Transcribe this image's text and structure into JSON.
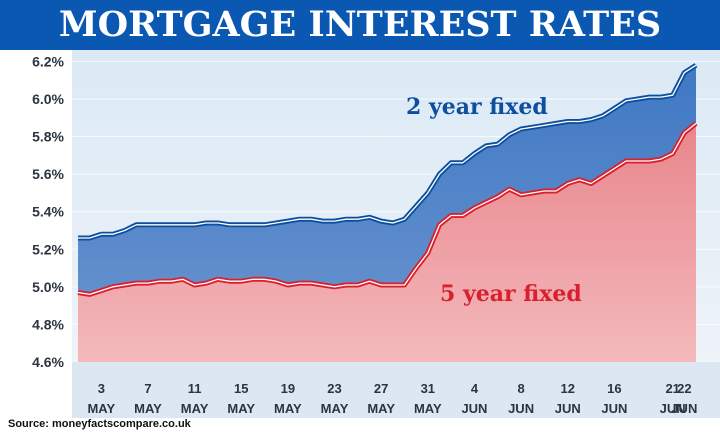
{
  "chart_data": {
    "type": "area",
    "title": "MORTGAGE INTEREST RATES",
    "source": "Source: moneyfactscompare.co.uk",
    "x": [
      1,
      2,
      3,
      4,
      5,
      6,
      7,
      8,
      9,
      10,
      11,
      12,
      13,
      14,
      15,
      16,
      17,
      18,
      19,
      20,
      21,
      22,
      23,
      24,
      25,
      26,
      27,
      28,
      29,
      30,
      31,
      32,
      33,
      34,
      35,
      36,
      37,
      38,
      39,
      40,
      41,
      42,
      43,
      44,
      45,
      46,
      47,
      48,
      49,
      50,
      51,
      52,
      53,
      54
    ],
    "x_ticks": [
      {
        "x": 3,
        "day": "3",
        "month": "MAY"
      },
      {
        "x": 7,
        "day": "7",
        "month": "MAY"
      },
      {
        "x": 11,
        "day": "11",
        "month": "MAY"
      },
      {
        "x": 15,
        "day": "15",
        "month": "MAY"
      },
      {
        "x": 19,
        "day": "19",
        "month": "MAY"
      },
      {
        "x": 23,
        "day": "23",
        "month": "MAY"
      },
      {
        "x": 27,
        "day": "27",
        "month": "MAY"
      },
      {
        "x": 31,
        "day": "31",
        "month": "MAY"
      },
      {
        "x": 35,
        "day": "4",
        "month": "JUN"
      },
      {
        "x": 39,
        "day": "8",
        "month": "JUN"
      },
      {
        "x": 43,
        "day": "12",
        "month": "JUN"
      },
      {
        "x": 47,
        "day": "16",
        "month": "JUN"
      },
      {
        "x": 52,
        "day": "21",
        "month": "JUN"
      },
      {
        "x": 53,
        "day": "22",
        "month": "JUN"
      }
    ],
    "ylim": [
      4.6,
      6.25
    ],
    "y_ticks": [
      4.6,
      4.8,
      5.0,
      5.2,
      5.4,
      5.6,
      5.8,
      6.0,
      6.2
    ],
    "y_tick_labels": [
      "4.6%",
      "4.8%",
      "5.0%",
      "5.2%",
      "5.4%",
      "5.6%",
      "5.8%",
      "6.0%",
      "6.2%"
    ],
    "series": [
      {
        "name": "2 year fixed",
        "color": "#0b4f9e",
        "values": [
          5.26,
          5.26,
          5.28,
          5.28,
          5.3,
          5.33,
          5.33,
          5.33,
          5.33,
          5.33,
          5.33,
          5.34,
          5.34,
          5.33,
          5.33,
          5.33,
          5.33,
          5.34,
          5.35,
          5.36,
          5.36,
          5.35,
          5.35,
          5.36,
          5.36,
          5.37,
          5.35,
          5.34,
          5.36,
          5.43,
          5.5,
          5.6,
          5.66,
          5.66,
          5.71,
          5.75,
          5.76,
          5.81,
          5.84,
          5.85,
          5.86,
          5.87,
          5.88,
          5.88,
          5.89,
          5.91,
          5.95,
          5.99,
          6.0,
          6.01,
          6.01,
          6.02,
          6.14,
          6.18
        ]
      },
      {
        "name": "5 year fixed",
        "color": "#d8202e",
        "values": [
          4.97,
          4.96,
          4.98,
          5.0,
          5.01,
          5.02,
          5.02,
          5.03,
          5.03,
          5.04,
          5.01,
          5.02,
          5.04,
          5.03,
          5.03,
          5.04,
          5.04,
          5.03,
          5.01,
          5.02,
          5.02,
          5.01,
          5.0,
          5.01,
          5.01,
          5.03,
          5.01,
          5.01,
          5.01,
          5.1,
          5.18,
          5.33,
          5.38,
          5.38,
          5.42,
          5.45,
          5.48,
          5.52,
          5.49,
          5.5,
          5.51,
          5.51,
          5.55,
          5.57,
          5.55,
          5.59,
          5.63,
          5.67,
          5.67,
          5.67,
          5.68,
          5.71,
          5.82,
          5.87
        ]
      }
    ]
  }
}
